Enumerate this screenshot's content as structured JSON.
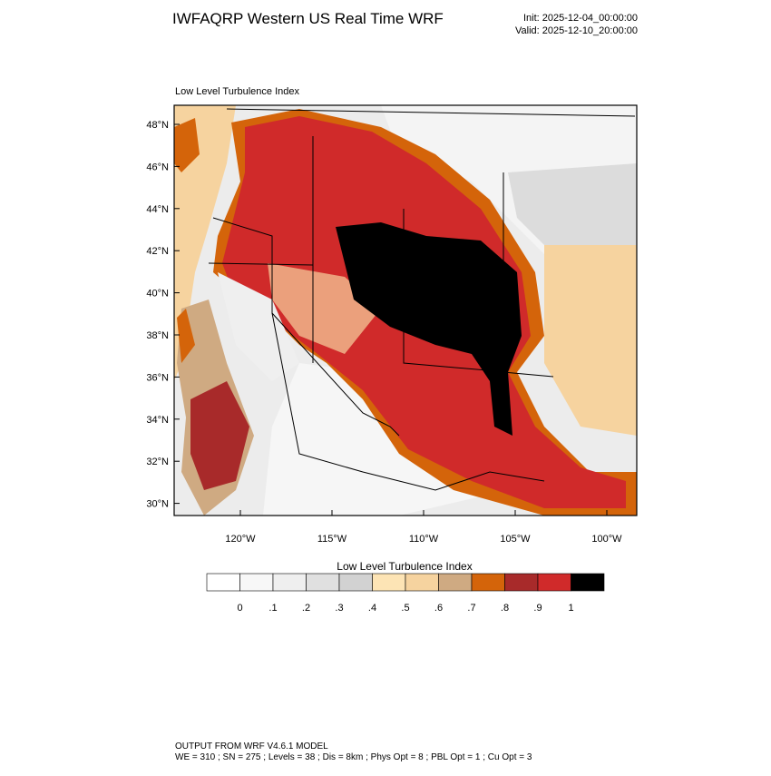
{
  "header": {
    "title": "IWFAQRP Western US Real Time WRF",
    "init": "Init: 2025-12-04_00:00:00",
    "valid": "Valid: 2025-12-10_20:00:00"
  },
  "map": {
    "title": "Low Level Turbulence Index",
    "lat_labels": [
      "48°N",
      "46°N",
      "44°N",
      "42°N",
      "40°N",
      "38°N",
      "36°N",
      "34°N",
      "32°N",
      "30°N"
    ],
    "lon_labels": [
      "120°W",
      "115°W",
      "110°W",
      "105°W",
      "100°W"
    ]
  },
  "colorbar": {
    "title": "Low Level Turbulence Index",
    "labels": [
      "0",
      ".1",
      ".2",
      ".3",
      ".4",
      ".5",
      ".6",
      ".7",
      ".8",
      ".9",
      "1"
    ],
    "colors": [
      "#ffffff",
      "#f7f7f7",
      "#efefef",
      "#e0e0e0",
      "#d2d2d2",
      "#fde4b5",
      "#f6d39f",
      "#cfaa82",
      "#d4640a",
      "#a82a2a",
      "#d02a2a",
      "#000000"
    ]
  },
  "footer": {
    "line1": "OUTPUT FROM WRF V4.6.1 MODEL",
    "line2": "WE = 310 ; SN = 275 ; Levels = 38 ; Dis = 8km ; Phys Opt = 8 ; PBL Opt = 1 ; Cu Opt = 3"
  }
}
